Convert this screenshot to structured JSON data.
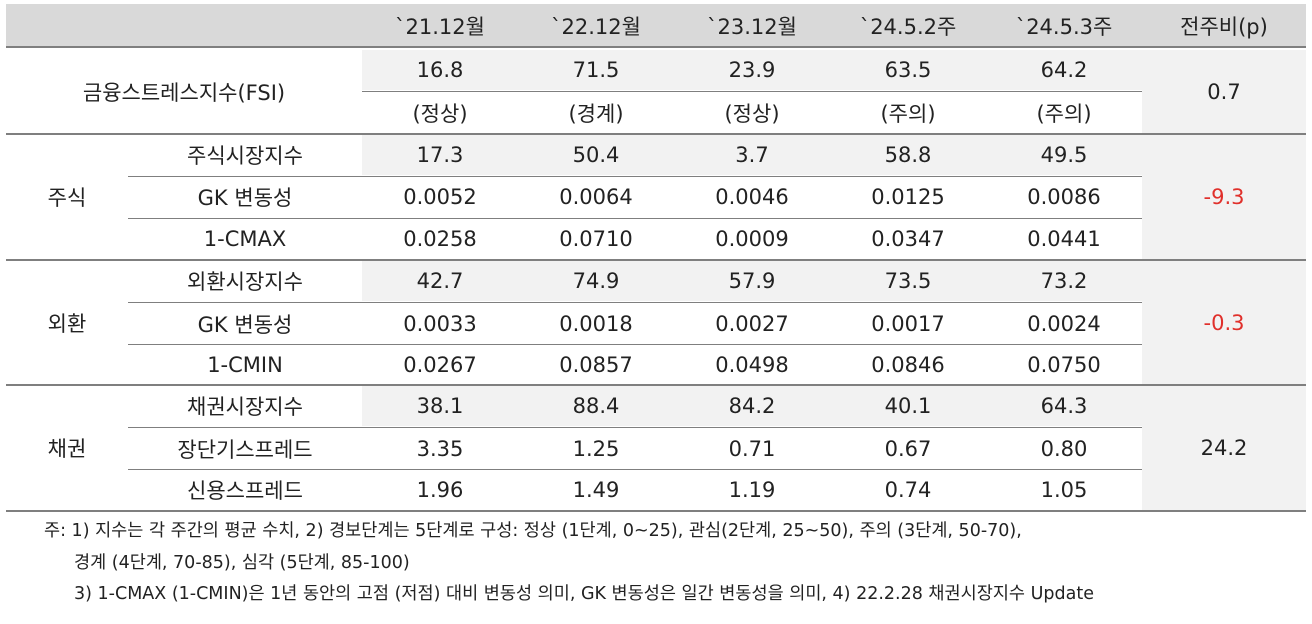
{
  "header": {
    "blank": "",
    "cols": [
      "`21.12월",
      "`22.12월",
      "`23.12월",
      "`24.5.2주",
      "`24.5.3주"
    ],
    "change": "전주비(p)"
  },
  "fsi": {
    "label": "금융스트레스지수(FSI)",
    "values": [
      "16.8",
      "71.5",
      "23.9",
      "63.5",
      "64.2"
    ],
    "status": [
      "(정상)",
      "(경계)",
      "(정상)",
      "(주의)",
      "(주의)"
    ],
    "change": "0.7"
  },
  "groups": [
    {
      "name": "주식",
      "change": "-9.3",
      "rows": [
        {
          "label": "주식시장지수",
          "values": [
            "17.3",
            "50.4",
            "3.7",
            "58.8",
            "49.5"
          ]
        },
        {
          "label": "GK 변동성",
          "values": [
            "0.0052",
            "0.0064",
            "0.0046",
            "0.0125",
            "0.0086"
          ]
        },
        {
          "label": "1-CMAX",
          "values": [
            "0.0258",
            "0.0710",
            "0.0009",
            "0.0347",
            "0.0441"
          ]
        }
      ]
    },
    {
      "name": "외환",
      "change": "-0.3",
      "rows": [
        {
          "label": "외환시장지수",
          "values": [
            "42.7",
            "74.9",
            "57.9",
            "73.5",
            "73.2"
          ]
        },
        {
          "label": "GK 변동성",
          "values": [
            "0.0033",
            "0.0018",
            "0.0027",
            "0.0017",
            "0.0024"
          ]
        },
        {
          "label": "1-CMIN",
          "values": [
            "0.0267",
            "0.0857",
            "0.0498",
            "0.0846",
            "0.0750"
          ]
        }
      ]
    },
    {
      "name": "채권",
      "change": "24.2",
      "rows": [
        {
          "label": "채권시장지수",
          "values": [
            "38.1",
            "88.4",
            "84.2",
            "40.1",
            "64.3"
          ]
        },
        {
          "label": "장단기스프레드",
          "values": [
            "3.35",
            "1.25",
            "0.71",
            "0.67",
            "0.80"
          ]
        },
        {
          "label": "신용스프레드",
          "values": [
            "1.96",
            "1.49",
            "1.19",
            "0.74",
            "1.05"
          ]
        }
      ]
    }
  ],
  "notes": [
    "주: 1) 지수는 각 주간의 평균 수치, 2) 경보단계는 5단계로 구성: 정상 (1단계, 0~25), 관심(2단계, 25~50), 주의 (3단계, 50-70),",
    "경계 (4단계, 70-85), 심각 (5단계, 85-100)",
    "3) 1-CMAX (1-CMIN)은 1년 동안의 고점 (저점) 대비 변동성 의미, GK 변동성은 일간 변동성을 의미, 4) 22.2.28 채권시장지수 Update"
  ],
  "colors": {
    "negative": "#e0302b",
    "header_bg": "#d9d9d9",
    "row_shade": "#f2f2f2"
  }
}
